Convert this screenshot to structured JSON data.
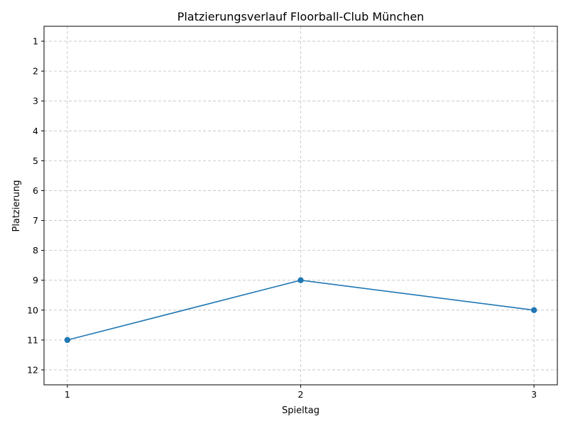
{
  "chart_data": {
    "type": "line",
    "title": "Platzierungsverlauf Floorball-Club München",
    "xlabel": "Spieltag",
    "ylabel": "Platzierung",
    "x": [
      1,
      2,
      3
    ],
    "series": [
      {
        "values": [
          11,
          9,
          10
        ],
        "color": "#1f77b4",
        "marker": "circle"
      }
    ],
    "x_ticks": [
      1,
      2,
      3
    ],
    "y_ticks": [
      1,
      2,
      3,
      4,
      5,
      6,
      7,
      8,
      9,
      10,
      11,
      12
    ],
    "xlim": [
      0.9,
      3.1
    ],
    "ylim": [
      0.5,
      12.5
    ],
    "y_inverted": true,
    "grid": true
  }
}
